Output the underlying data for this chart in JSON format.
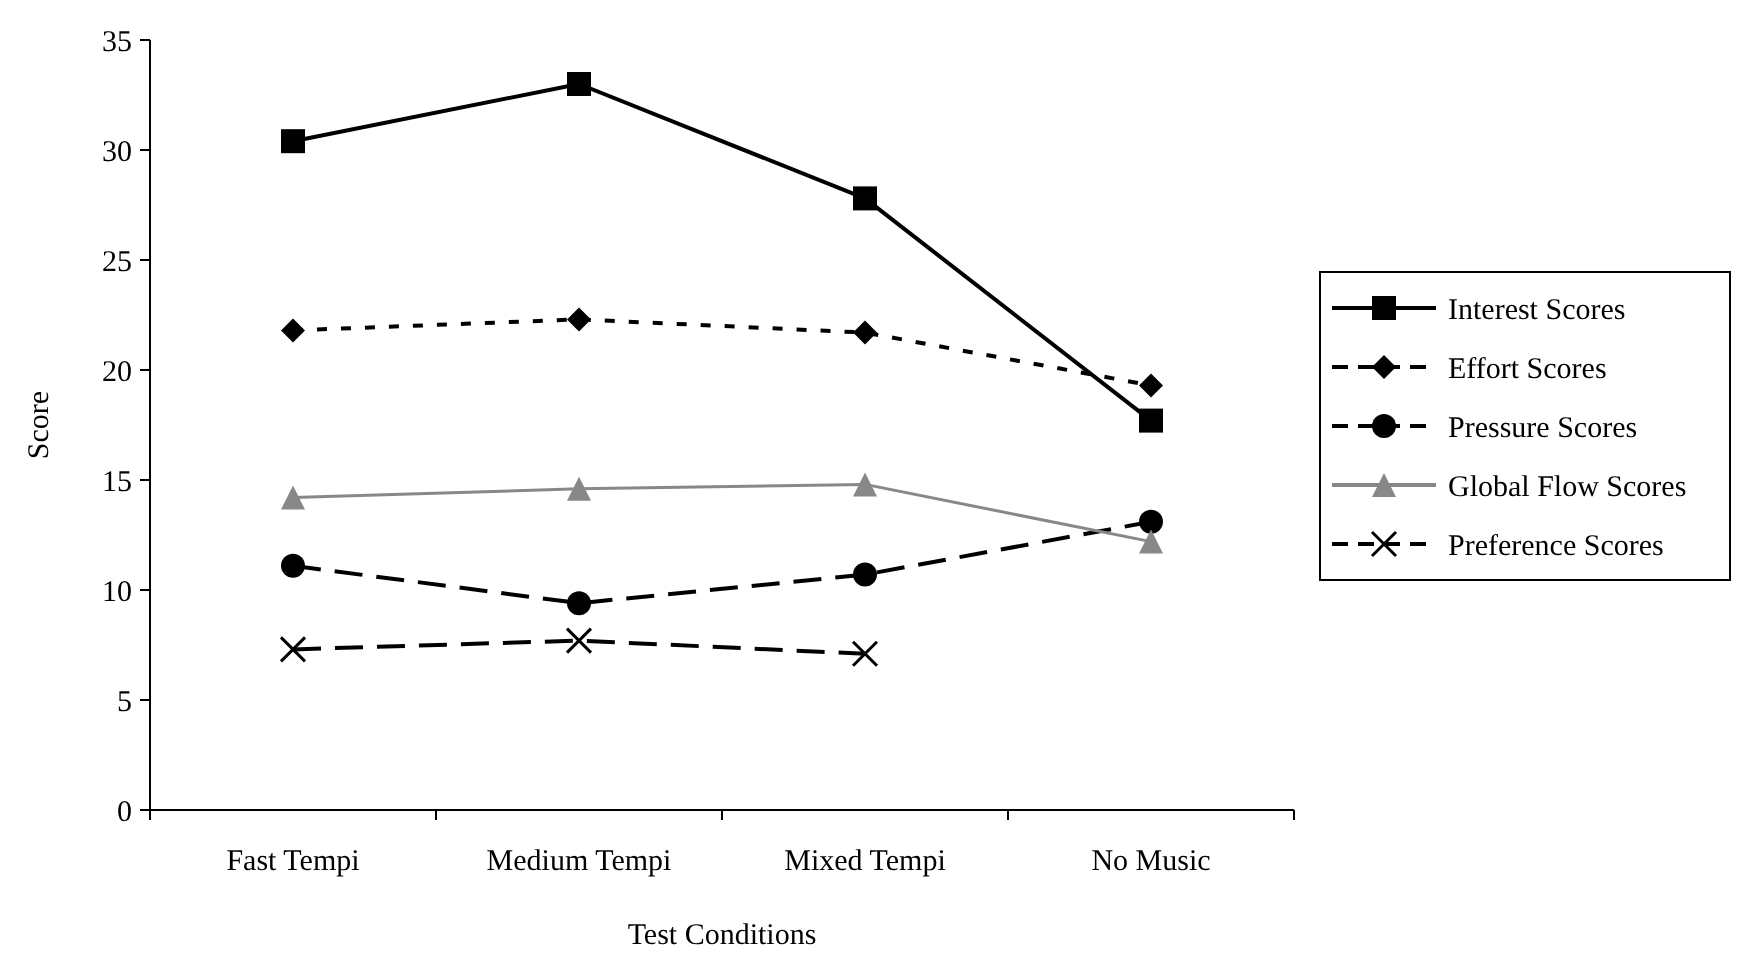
{
  "chart_data": {
    "type": "line",
    "xlabel": "Test Conditions",
    "ylabel": "Score",
    "categories": [
      "Fast Tempi",
      "Medium Tempi",
      "Mixed Tempi",
      "No Music"
    ],
    "ylim": [
      0,
      35
    ],
    "yticks": [
      0,
      5,
      10,
      15,
      20,
      25,
      30,
      35
    ],
    "grid": false,
    "legend": "right",
    "series": [
      {
        "name": "Interest Scores",
        "color": "#000000",
        "marker": "square",
        "line_style": "solid",
        "values": [
          30.4,
          33.0,
          27.8,
          17.7
        ]
      },
      {
        "name": "Effort Scores",
        "color": "#000000",
        "marker": "diamond",
        "line_style": "dotted",
        "values": [
          21.8,
          22.3,
          21.7,
          19.3
        ]
      },
      {
        "name": "Pressure Scores",
        "color": "#000000",
        "marker": "circle",
        "line_style": "dashed",
        "values": [
          11.1,
          9.4,
          10.7,
          13.1
        ]
      },
      {
        "name": "Global Flow Scores",
        "color": "#888888",
        "marker": "triangle",
        "line_style": "solid",
        "values": [
          14.2,
          14.6,
          14.8,
          12.2
        ]
      },
      {
        "name": "Preference Scores",
        "color": "#000000",
        "marker": "cross",
        "line_style": "dashed",
        "values": [
          7.3,
          7.7,
          7.1,
          null
        ]
      }
    ]
  }
}
